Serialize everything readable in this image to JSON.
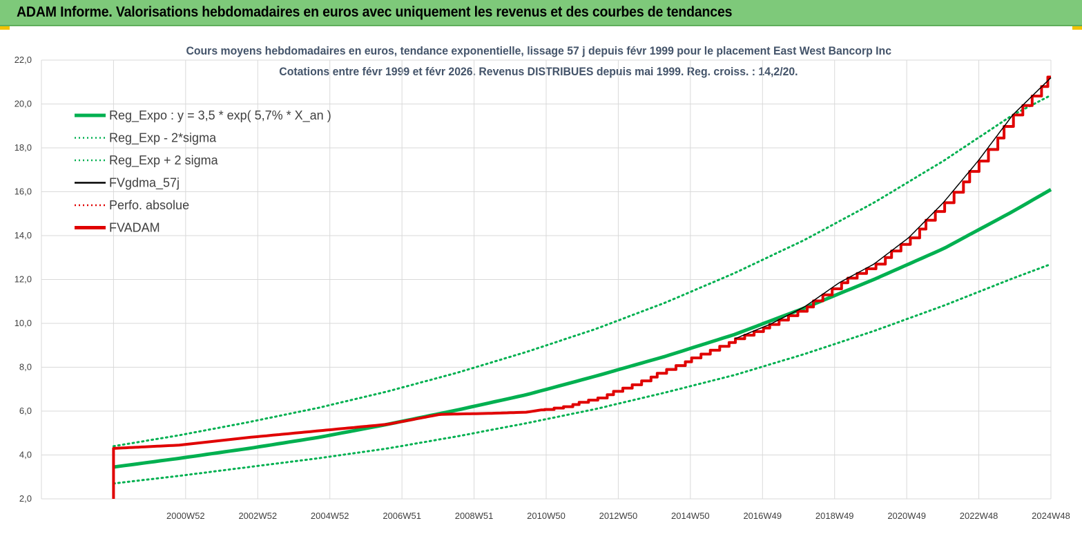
{
  "banner": {
    "title": "ADAM Informe. Valorisations hebdomadaires en euros avec uniquement les revenus et des courbes de tendances"
  },
  "colors": {
    "banner_bg": "#7ec97a",
    "reg_expo": "#00b050",
    "fvadam": "#e00000",
    "fvgdma": "#000000",
    "perfo": "#e00000",
    "grid": "#d9d9d9",
    "title": "#44546a"
  },
  "chart_data": {
    "type": "line",
    "title_line1": "Cours moyens hebdomadaires en euros, tendance exponentielle, lissage 57 j depuis févr 1999 pour le placement East West Bancorp Inc",
    "title_line2": "Cotations entre févr 1999 et févr 2026. Revenus DISTRIBUES depuis mai 1999. Reg. croiss. : 14,2/20.",
    "ylim": [
      2,
      22
    ],
    "y_ticks": [
      "2,0",
      "4,0",
      "6,0",
      "8,0",
      "10,0",
      "12,0",
      "14,0",
      "16,0",
      "18,0",
      "20,0",
      "22,0"
    ],
    "x_ticks": [
      "2000W52",
      "2002W52",
      "2004W52",
      "2006W51",
      "2008W51",
      "2010W50",
      "2012W50",
      "2014W50",
      "2016W49",
      "2018W49",
      "2020W49",
      "2022W48",
      "2024W48"
    ],
    "x_range_years": [
      1999.1,
      2026.1
    ],
    "grid": true,
    "legend_position": "top-left",
    "legend": [
      {
        "label": "Reg_Expo : y = 3,5 * exp( 5,7% *  X_an )",
        "style": "solid-thick",
        "color": "#00b050"
      },
      {
        "label": "Reg_Exp - 2*sigma",
        "style": "dotted",
        "color": "#00b050"
      },
      {
        "label": "Reg_Exp + 2 sigma",
        "style": "dotted",
        "color": "#00b050"
      },
      {
        "label": "FVgdma_57j",
        "style": "solid",
        "color": "#000000"
      },
      {
        "label": "Perfo. absolue",
        "style": "dotted",
        "color": "#e00000"
      },
      {
        "label": "FVADAM",
        "style": "solid-thick",
        "color": "#e00000"
      }
    ],
    "series": [
      {
        "name": "Reg_Expo : y = 3,5 * exp( 5,7% *  X_an )",
        "x": [
          1999.1,
          2001,
          2003,
          2005,
          2007,
          2009,
          2011,
          2013,
          2015,
          2017,
          2019,
          2021,
          2023,
          2025,
          2026.1
        ],
        "values": [
          3.45,
          3.85,
          4.3,
          4.8,
          5.4,
          6.05,
          6.75,
          7.6,
          8.5,
          9.5,
          10.7,
          12.0,
          13.4,
          15.1,
          16.1
        ]
      },
      {
        "name": "Reg_Exp - 2*sigma",
        "x": [
          1999.1,
          2001,
          2003,
          2005,
          2007,
          2009,
          2011,
          2013,
          2015,
          2017,
          2019,
          2021,
          2023,
          2025,
          2026.1
        ],
        "values": [
          2.7,
          3.05,
          3.45,
          3.85,
          4.3,
          4.85,
          5.45,
          6.1,
          6.85,
          7.65,
          8.6,
          9.65,
          10.8,
          12.05,
          12.7
        ]
      },
      {
        "name": "Reg_Exp + 2 sigma",
        "x": [
          1999.1,
          2001,
          2003,
          2005,
          2007,
          2009,
          2011,
          2013,
          2015,
          2017,
          2019,
          2021,
          2023,
          2025,
          2026.1
        ],
        "values": [
          4.4,
          4.9,
          5.5,
          6.15,
          6.9,
          7.75,
          8.7,
          9.75,
          10.95,
          12.3,
          13.8,
          15.5,
          17.4,
          19.5,
          20.4
        ]
      },
      {
        "name": "FVADAM",
        "x": [
          1999.1,
          1999.1,
          2001,
          2003,
          2005,
          2007,
          2008.5,
          2010,
          2011,
          2012,
          2013,
          2014,
          2015,
          2016,
          2017,
          2018,
          2019,
          2020,
          2021,
          2022,
          2023,
          2024,
          2025,
          2026.1
        ],
        "values": [
          2.0,
          4.3,
          4.45,
          4.8,
          5.1,
          5.4,
          5.85,
          5.9,
          5.95,
          6.2,
          6.6,
          7.2,
          7.9,
          8.6,
          9.3,
          9.95,
          10.75,
          11.85,
          12.7,
          13.9,
          15.5,
          17.4,
          19.5,
          21.4
        ]
      },
      {
        "name": "FVgdma_57j",
        "x": [
          2017,
          2018,
          2019,
          2020,
          2021,
          2022,
          2023,
          2024,
          2025,
          2026.1
        ],
        "values": [
          9.3,
          9.95,
          10.75,
          11.85,
          12.7,
          13.9,
          15.5,
          17.4,
          19.5,
          21.2
        ]
      }
    ]
  }
}
